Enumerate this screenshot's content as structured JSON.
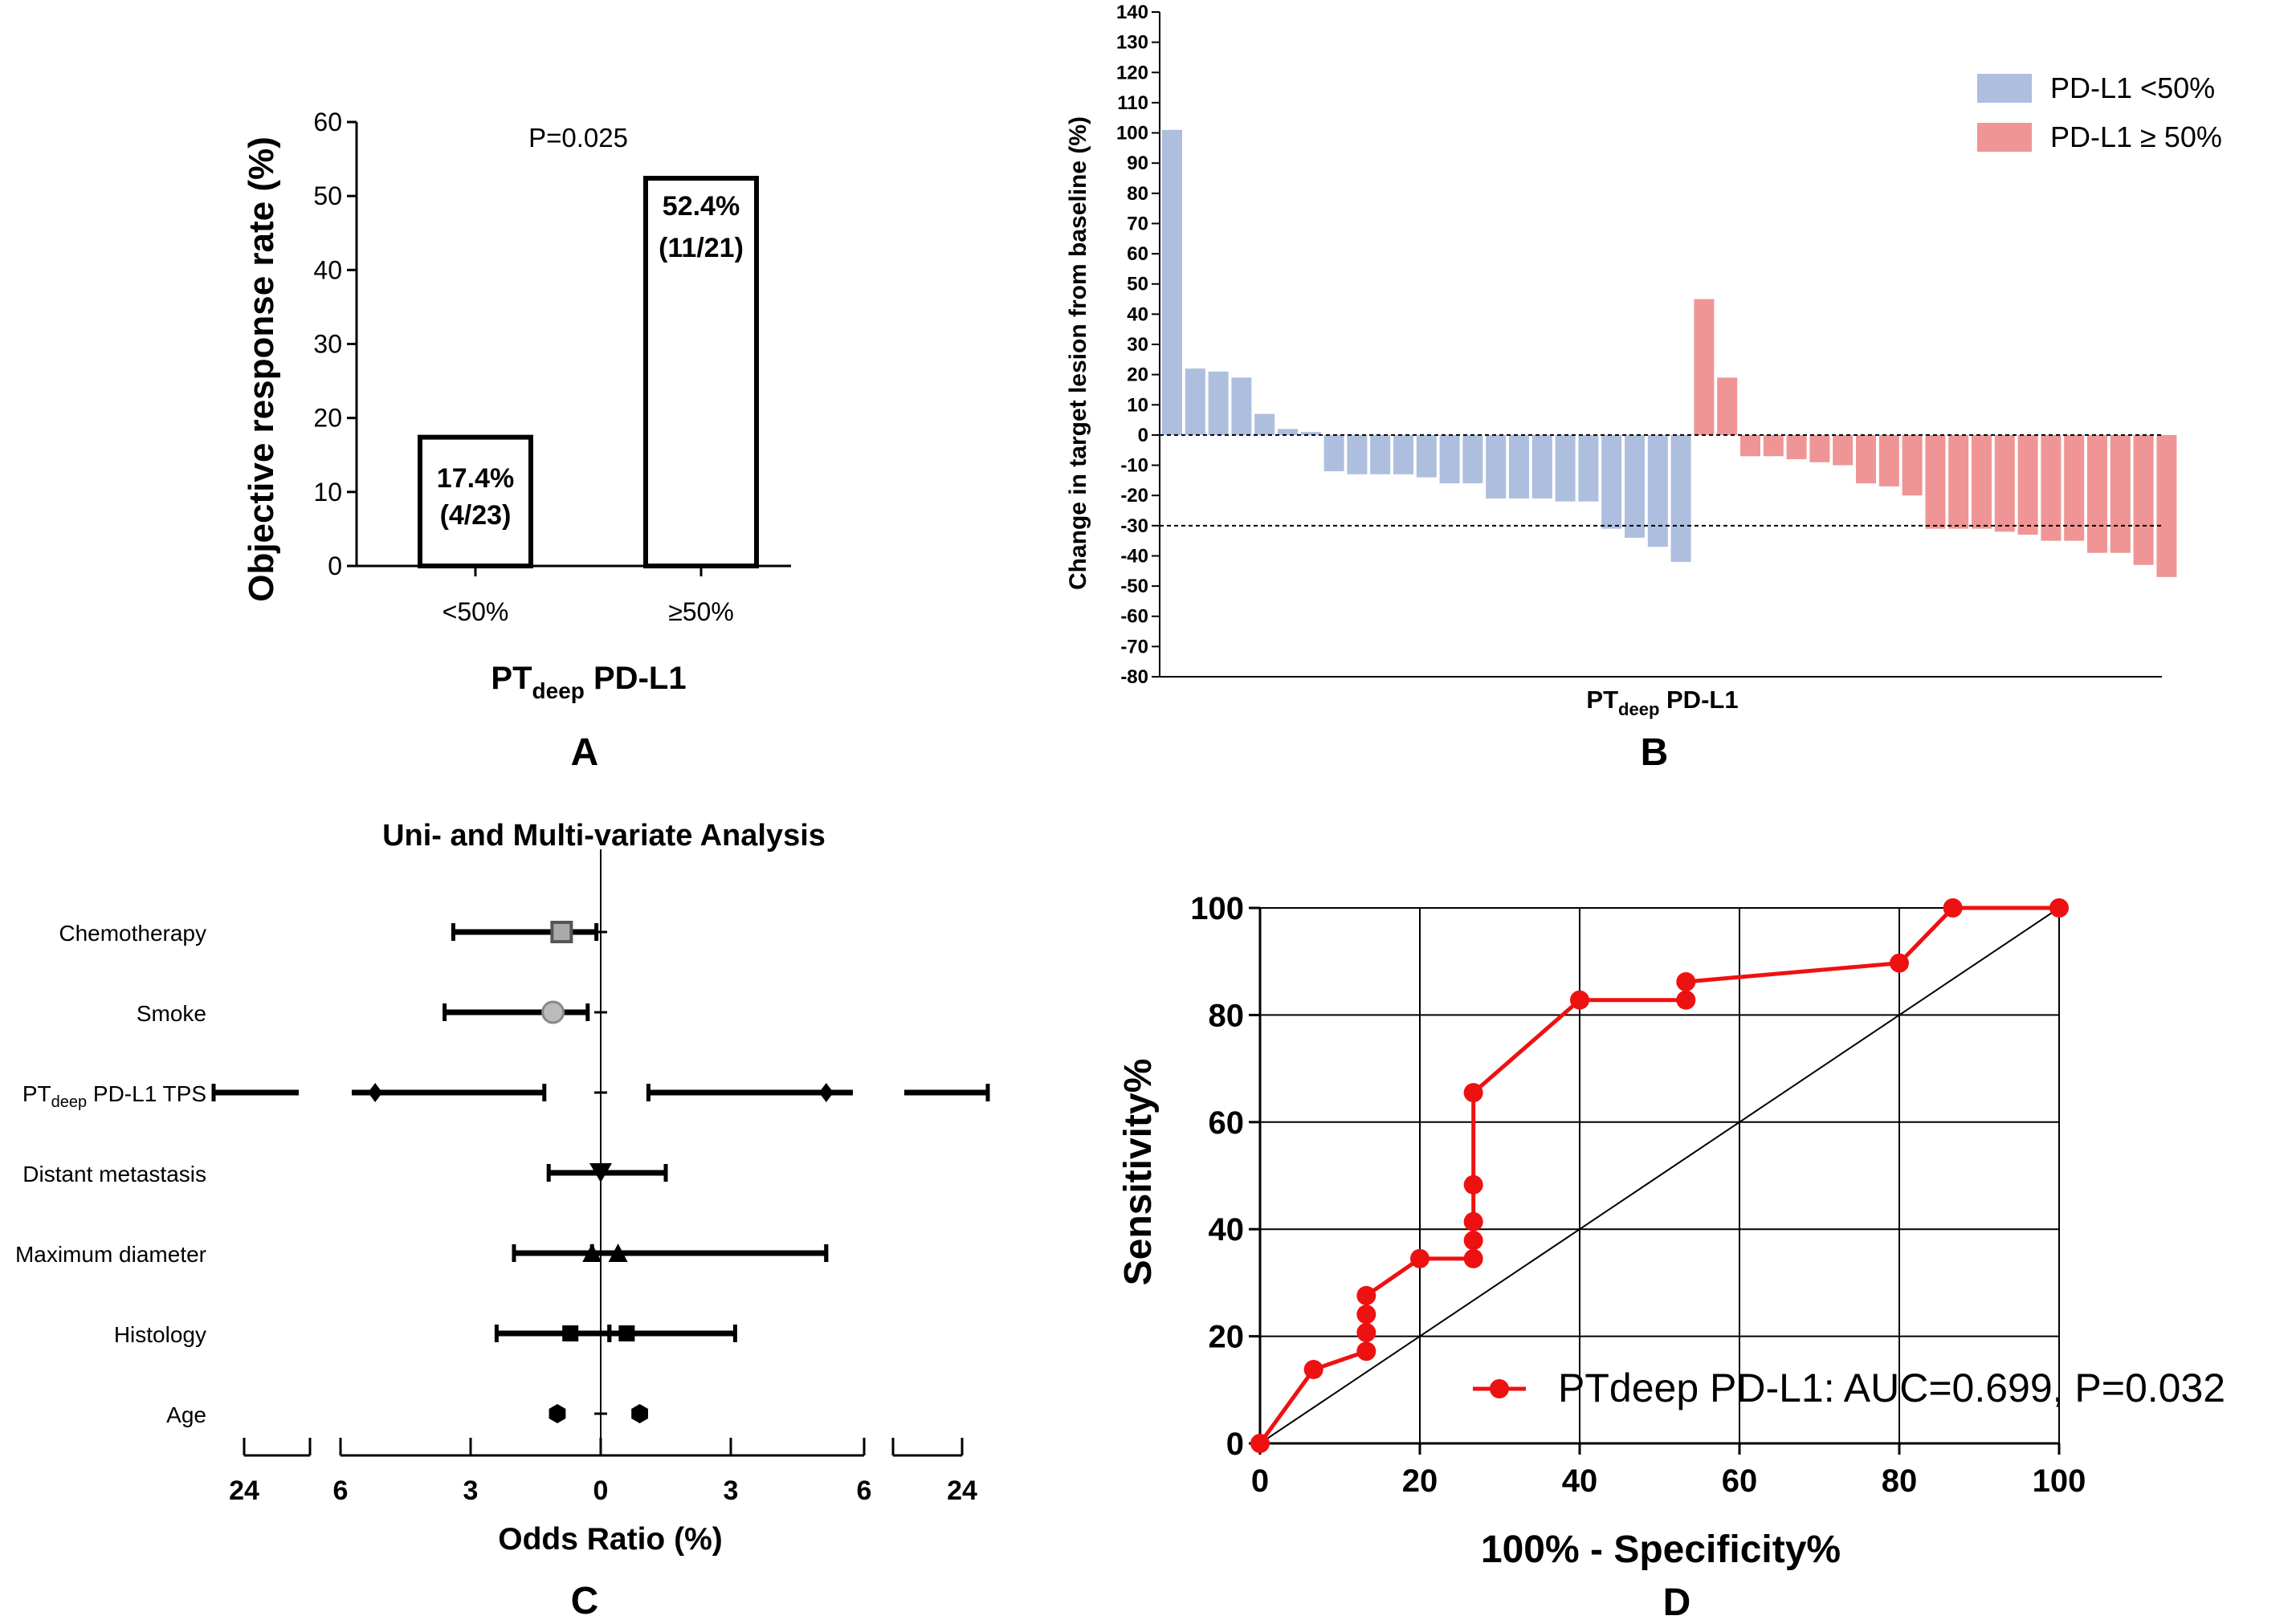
{
  "chart_data": [
    {
      "panel": "A",
      "type": "bar",
      "ylabel": "Objective response rate (%)",
      "xlabel_main": "PT",
      "xlabel_sub": "deep",
      "xlabel_rest": " PD-L1",
      "ylim": [
        0,
        60
      ],
      "yticks": [
        "0",
        "10",
        "20",
        "30",
        "40",
        "50",
        "60"
      ],
      "categories": [
        "<50%",
        "≥50%"
      ],
      "values": [
        17.4,
        52.4
      ],
      "labels": [
        [
          "17.4%",
          "(4/23)"
        ],
        [
          "52.4%",
          "(11/21)"
        ]
      ],
      "p_text": "P=0.025",
      "panel_label": "A"
    },
    {
      "panel": "B",
      "type": "bar",
      "ylabel": "Change in target lesion from baseline (%)",
      "xlabel_main": "PT",
      "xlabel_sub": "deep",
      "xlabel_rest": " PD-L1",
      "ylim": [
        -80,
        140
      ],
      "yticks": [
        "140",
        "130",
        "120",
        "110",
        "100",
        "90",
        "80",
        "70",
        "60",
        "50",
        "40",
        "30",
        "20",
        "10",
        "0",
        "-10",
        "-20",
        "-30",
        "-40",
        "-50",
        "-60",
        "-70",
        "-80"
      ],
      "reference_lines": [
        0,
        -30
      ],
      "legend": [
        {
          "name": "PD-L1 <50%",
          "color": "#aebedf"
        },
        {
          "name": "PD-L1 ≥ 50%",
          "color": "#ef9595"
        }
      ],
      "series": [
        {
          "name": "PD-L1 <50%",
          "values": [
            101,
            22,
            21,
            19,
            7,
            2,
            1,
            -12,
            -13,
            -13,
            -13,
            -14,
            -16,
            -16,
            -21,
            -21,
            -21,
            -22,
            -22,
            -31,
            -34,
            -37,
            -42
          ]
        },
        {
          "name": "PD-L1 ≥ 50%",
          "values": [
            45,
            19,
            -7,
            -7,
            -8,
            -9,
            -10,
            -16,
            -17,
            -20,
            -31,
            -31,
            -31,
            -32,
            -33,
            -35,
            -35,
            -39,
            -39,
            -43,
            -47
          ]
        }
      ],
      "panel_label": "B"
    },
    {
      "panel": "C",
      "type": "scatter",
      "title": "Uni- and Multi-variate Analysis",
      "xlabel": "Odds Ratio (%)",
      "xtick_labels": [
        "24",
        "6",
        "3",
        "0",
        "3",
        "6",
        "24"
      ],
      "rows": [
        {
          "label": "Chemotherapy",
          "marker": "square-open-gray",
          "points": [
            {
              "lo": -3.4,
              "est": -0.9,
              "hi": -0.1
            }
          ]
        },
        {
          "label": "Smoke",
          "marker": "circle-open-gray",
          "points": [
            {
              "lo": -3.6,
              "est": -1.1,
              "hi": -0.3
            }
          ]
        },
        {
          "label_main": "PT",
          "label_sub": "deep",
          "label_rest": " PD-L1 TPS",
          "label": "PTdeep PD-L1 TPS",
          "marker": "diamond",
          "points": [
            {
              "lo": -10.5,
              "est": -5.2,
              "hi": -1.3
            },
            {
              "lo": 1.1,
              "est": 5.2,
              "hi": 10.5
            }
          ]
        },
        {
          "label": "Distant metastasis",
          "marker": "triangle-down",
          "points": [
            {
              "lo": -1.2,
              "est": 0.0,
              "hi": 1.5
            }
          ]
        },
        {
          "label": "Maximum diameter",
          "marker": "triangle-up",
          "points": [
            {
              "lo": -2.0,
              "est": -0.2,
              "hi": 5.2
            },
            {
              "lo": -0.2,
              "est": 0.4,
              "hi": 5.2
            }
          ]
        },
        {
          "label": "Histology",
          "marker": "square",
          "points": [
            {
              "lo": -2.4,
              "est": -0.7,
              "hi": 0.2
            },
            {
              "lo": 0.2,
              "est": 0.6,
              "hi": 3.1
            }
          ]
        },
        {
          "label": "Age",
          "marker": "hexagon",
          "points": [
            {
              "lo": null,
              "est": -1.0,
              "hi": null
            },
            {
              "lo": null,
              "est": 0.9,
              "hi": null
            }
          ]
        }
      ],
      "panel_label": "C"
    },
    {
      "panel": "D",
      "type": "line",
      "xlabel": "100% - Specificity%",
      "ylabel": "Sensitivity%",
      "xlim": [
        0,
        100
      ],
      "ylim": [
        0,
        100
      ],
      "xticks": [
        "0",
        "20",
        "40",
        "60",
        "80",
        "100"
      ],
      "yticks": [
        "0",
        "20",
        "40",
        "60",
        "80",
        "100"
      ],
      "grid": true,
      "legend_text": "PTdeep PD-L1: AUC=0.699, P=0.032",
      "legend_color": "#ee1111",
      "series": [
        {
          "name": "PTdeep PD-L1",
          "x": [
            0,
            6.7,
            13.3,
            13.3,
            13.3,
            13.3,
            20,
            26.7,
            26.7,
            26.7,
            26.7,
            26.7,
            40,
            53.3,
            53.3,
            80,
            86.7,
            100
          ],
          "y": [
            0,
            13.8,
            17.2,
            20.7,
            24.1,
            27.6,
            34.5,
            34.5,
            37.9,
            41.4,
            48.3,
            65.5,
            82.8,
            82.8,
            86.2,
            89.7,
            100,
            100
          ]
        }
      ],
      "diagonal": true,
      "panel_label": "D"
    }
  ]
}
